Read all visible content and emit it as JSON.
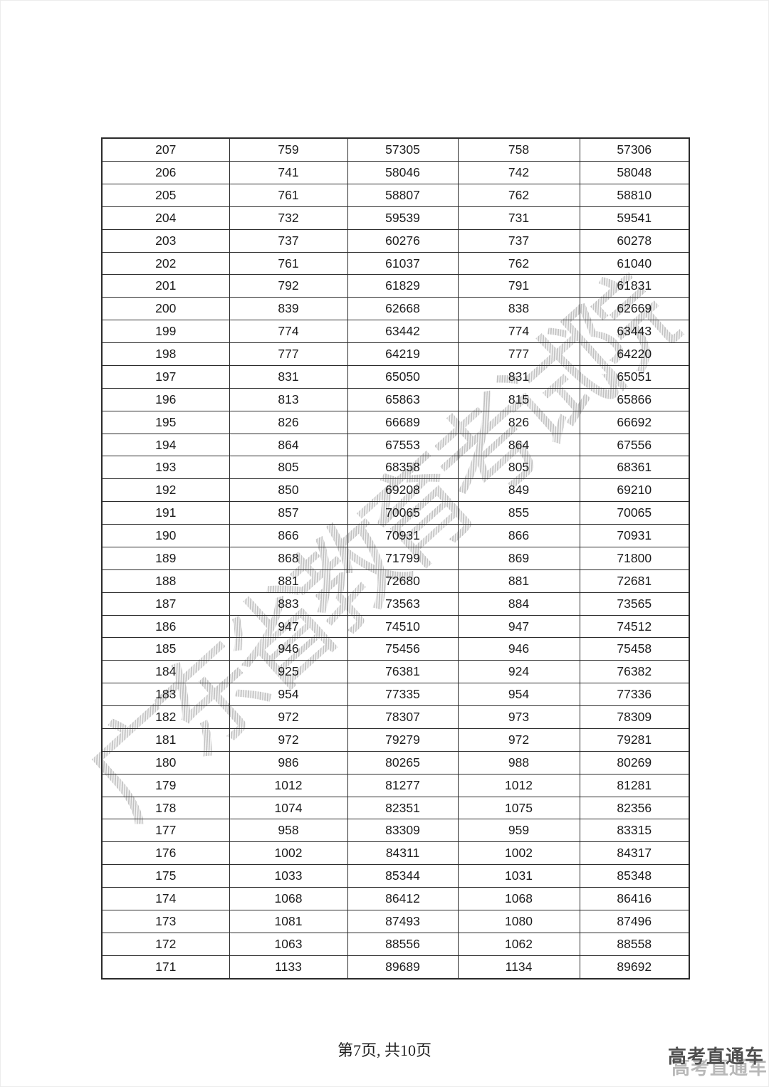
{
  "watermark": {
    "text": "广东省教育考试院",
    "color": "#8f8f8f"
  },
  "footer": {
    "page_label": "第7页, 共10页"
  },
  "brand": {
    "text": "高考直通车",
    "shadow_text": "高考直通车",
    "front_color": "#4f4f4f",
    "shadow_color": "#b8b8b8"
  },
  "table": {
    "border_color": "#2b2b2b",
    "text_color": "#1c1c1c",
    "rows": [
      [
        207,
        759,
        57305,
        758,
        57306
      ],
      [
        206,
        741,
        58046,
        742,
        58048
      ],
      [
        205,
        761,
        58807,
        762,
        58810
      ],
      [
        204,
        732,
        59539,
        731,
        59541
      ],
      [
        203,
        737,
        60276,
        737,
        60278
      ],
      [
        202,
        761,
        61037,
        762,
        61040
      ],
      [
        201,
        792,
        61829,
        791,
        61831
      ],
      [
        200,
        839,
        62668,
        838,
        62669
      ],
      [
        199,
        774,
        63442,
        774,
        63443
      ],
      [
        198,
        777,
        64219,
        777,
        64220
      ],
      [
        197,
        831,
        65050,
        831,
        65051
      ],
      [
        196,
        813,
        65863,
        815,
        65866
      ],
      [
        195,
        826,
        66689,
        826,
        66692
      ],
      [
        194,
        864,
        67553,
        864,
        67556
      ],
      [
        193,
        805,
        68358,
        805,
        68361
      ],
      [
        192,
        850,
        69208,
        849,
        69210
      ],
      [
        191,
        857,
        70065,
        855,
        70065
      ],
      [
        190,
        866,
        70931,
        866,
        70931
      ],
      [
        189,
        868,
        71799,
        869,
        71800
      ],
      [
        188,
        881,
        72680,
        881,
        72681
      ],
      [
        187,
        883,
        73563,
        884,
        73565
      ],
      [
        186,
        947,
        74510,
        947,
        74512
      ],
      [
        185,
        946,
        75456,
        946,
        75458
      ],
      [
        184,
        925,
        76381,
        924,
        76382
      ],
      [
        183,
        954,
        77335,
        954,
        77336
      ],
      [
        182,
        972,
        78307,
        973,
        78309
      ],
      [
        181,
        972,
        79279,
        972,
        79281
      ],
      [
        180,
        986,
        80265,
        988,
        80269
      ],
      [
        179,
        1012,
        81277,
        1012,
        81281
      ],
      [
        178,
        1074,
        82351,
        1075,
        82356
      ],
      [
        177,
        958,
        83309,
        959,
        83315
      ],
      [
        176,
        1002,
        84311,
        1002,
        84317
      ],
      [
        175,
        1033,
        85344,
        1031,
        85348
      ],
      [
        174,
        1068,
        86412,
        1068,
        86416
      ],
      [
        173,
        1081,
        87493,
        1080,
        87496
      ],
      [
        172,
        1063,
        88556,
        1062,
        88558
      ],
      [
        171,
        1133,
        89689,
        1134,
        89692
      ]
    ]
  }
}
